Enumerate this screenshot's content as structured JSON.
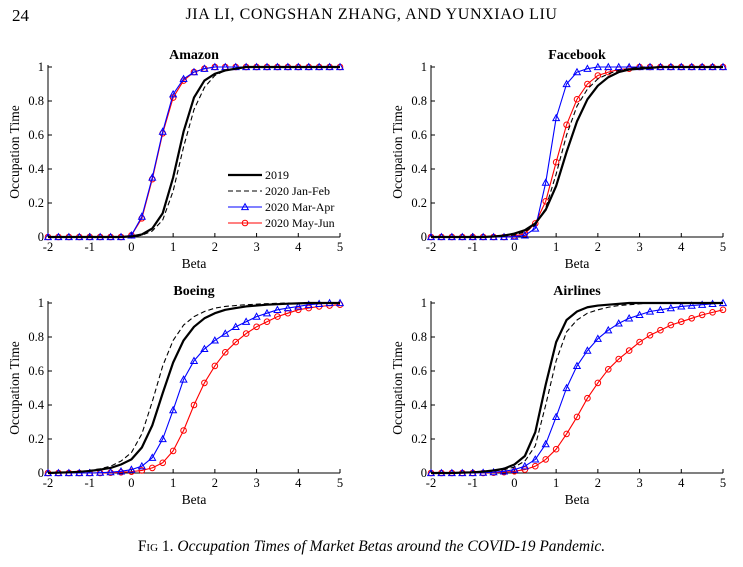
{
  "header": {
    "page_number": "24",
    "running_title": "JIA LI, CONGSHAN ZHANG, AND YUNXIAO LIU"
  },
  "caption": {
    "label": "Fig 1.",
    "text": "Occupation Times of Market Betas around the COVID-19 Pandemic."
  },
  "legend": {
    "entries": [
      {
        "name": "2019",
        "key": "y2019"
      },
      {
        "name": "2020 Jan-Feb",
        "key": "janfeb"
      },
      {
        "name": "2020 Mar-Apr",
        "key": "marapr"
      },
      {
        "name": "2020 May-Jun",
        "key": "mayjun"
      }
    ]
  },
  "styles": {
    "y2019": {
      "color": "#000000",
      "dash": "none",
      "width": 2.2,
      "marker": "none"
    },
    "janfeb": {
      "color": "#000000",
      "dash": "5,3",
      "width": 1.1,
      "marker": "none"
    },
    "marapr": {
      "color": "#0000ff",
      "dash": "none",
      "width": 1.1,
      "marker": "triangle"
    },
    "mayjun": {
      "color": "#ff0000",
      "dash": "none",
      "width": 1.1,
      "marker": "circle"
    }
  },
  "chart_data": [
    {
      "type": "line",
      "title": "Amazon",
      "xlabel": "Beta",
      "ylabel": "Occupation Time",
      "xlim": [
        -2,
        5
      ],
      "ylim": [
        0,
        1
      ],
      "xticks": [
        "-2",
        "-1",
        "0",
        "1",
        "2",
        "3",
        "4",
        "5"
      ],
      "yticks": [
        "0",
        "0.2",
        "0.4",
        "0.6",
        "0.8",
        "1"
      ],
      "x": [
        -2.0,
        -1.75,
        -1.5,
        -1.25,
        -1.0,
        -0.75,
        -0.5,
        -0.25,
        0.0,
        0.25,
        0.5,
        0.75,
        1.0,
        1.25,
        1.5,
        1.75,
        2.0,
        2.25,
        2.5,
        2.75,
        3.0,
        3.25,
        3.5,
        3.75,
        4.0,
        4.25,
        4.5,
        4.75,
        5.0
      ],
      "series": [
        {
          "name": "2019",
          "key": "y2019",
          "values": [
            0,
            0,
            0,
            0,
            0,
            0,
            0,
            0,
            0.003,
            0.015,
            0.05,
            0.14,
            0.35,
            0.62,
            0.82,
            0.92,
            0.96,
            0.98,
            0.99,
            1,
            1,
            1,
            1,
            1,
            1,
            1,
            1,
            1,
            1
          ]
        },
        {
          "name": "2020 Jan-Feb",
          "key": "janfeb",
          "values": [
            0,
            0,
            0,
            0,
            0,
            0,
            0,
            0,
            0.002,
            0.01,
            0.035,
            0.1,
            0.27,
            0.53,
            0.75,
            0.88,
            0.95,
            0.98,
            0.99,
            1,
            1,
            1,
            1,
            1,
            1,
            1,
            1,
            1,
            1
          ]
        },
        {
          "name": "2020 Mar-Apr",
          "key": "marapr",
          "values": [
            0,
            0,
            0,
            0,
            0,
            0,
            0,
            0,
            0.01,
            0.12,
            0.35,
            0.62,
            0.84,
            0.93,
            0.97,
            0.99,
            1,
            1,
            1,
            1,
            1,
            1,
            1,
            1,
            1,
            1,
            1,
            1,
            1
          ]
        },
        {
          "name": "2020 May-Jun",
          "key": "mayjun",
          "values": [
            0,
            0,
            0,
            0,
            0,
            0,
            0,
            0,
            0.01,
            0.11,
            0.34,
            0.61,
            0.82,
            0.92,
            0.97,
            0.99,
            1,
            1,
            1,
            1,
            1,
            1,
            1,
            1,
            1,
            1,
            1,
            1,
            1
          ]
        }
      ]
    },
    {
      "type": "line",
      "title": "Facebook",
      "xlabel": "Beta",
      "ylabel": "Occupation Time",
      "xlim": [
        -2,
        5
      ],
      "ylim": [
        0,
        1
      ],
      "xticks": [
        "-2",
        "-1",
        "0",
        "1",
        "2",
        "3",
        "4",
        "5"
      ],
      "yticks": [
        "0",
        "0.2",
        "0.4",
        "0.6",
        "0.8",
        "1"
      ],
      "x": [
        -2.0,
        -1.75,
        -1.5,
        -1.25,
        -1.0,
        -0.75,
        -0.5,
        -0.25,
        0.0,
        0.25,
        0.5,
        0.75,
        1.0,
        1.25,
        1.5,
        1.75,
        2.0,
        2.25,
        2.5,
        2.75,
        3.0,
        3.25,
        3.5,
        3.75,
        4.0,
        4.25,
        4.5,
        4.75,
        5.0
      ],
      "series": [
        {
          "name": "2019",
          "key": "y2019",
          "values": [
            0,
            0,
            0,
            0,
            0,
            0,
            0.003,
            0.008,
            0.02,
            0.04,
            0.08,
            0.16,
            0.3,
            0.5,
            0.68,
            0.81,
            0.89,
            0.94,
            0.97,
            0.985,
            0.99,
            0.995,
            1,
            1,
            1,
            1,
            1,
            1,
            1
          ]
        },
        {
          "name": "2020 Jan-Feb",
          "key": "janfeb",
          "values": [
            0,
            0,
            0,
            0,
            0,
            0,
            0.002,
            0.005,
            0.012,
            0.03,
            0.07,
            0.17,
            0.37,
            0.6,
            0.77,
            0.87,
            0.93,
            0.96,
            0.98,
            0.99,
            1,
            1,
            1,
            1,
            1,
            1,
            1,
            1,
            1
          ]
        },
        {
          "name": "2020 Mar-Apr",
          "key": "marapr",
          "values": [
            0,
            0,
            0,
            0,
            0,
            0,
            0,
            0,
            0.002,
            0.01,
            0.05,
            0.32,
            0.7,
            0.9,
            0.97,
            0.99,
            1,
            1,
            1,
            1,
            1,
            1,
            1,
            1,
            1,
            1,
            1,
            1,
            1
          ]
        },
        {
          "name": "2020 May-Jun",
          "key": "mayjun",
          "values": [
            0,
            0,
            0,
            0,
            0,
            0,
            0,
            0,
            0.005,
            0.02,
            0.08,
            0.21,
            0.44,
            0.66,
            0.81,
            0.9,
            0.95,
            0.97,
            0.985,
            0.99,
            1,
            1,
            1,
            1,
            1,
            1,
            1,
            1,
            1
          ]
        }
      ]
    },
    {
      "type": "line",
      "title": "Boeing",
      "xlabel": "Beta",
      "ylabel": "Occupation Time",
      "xlim": [
        -2,
        5
      ],
      "ylim": [
        0,
        1
      ],
      "xticks": [
        "-2",
        "-1",
        "0",
        "1",
        "2",
        "3",
        "4",
        "5"
      ],
      "yticks": [
        "0",
        "0.2",
        "0.4",
        "0.6",
        "0.8",
        "1"
      ],
      "x": [
        -2.0,
        -1.75,
        -1.5,
        -1.25,
        -1.0,
        -0.75,
        -0.5,
        -0.25,
        0.0,
        0.25,
        0.5,
        0.75,
        1.0,
        1.25,
        1.5,
        1.75,
        2.0,
        2.25,
        2.5,
        2.75,
        3.0,
        3.25,
        3.5,
        3.75,
        4.0,
        4.25,
        4.5,
        4.75,
        5.0
      ],
      "series": [
        {
          "name": "2019",
          "key": "y2019",
          "values": [
            0,
            0.002,
            0.004,
            0.007,
            0.012,
            0.02,
            0.03,
            0.05,
            0.08,
            0.15,
            0.28,
            0.47,
            0.65,
            0.78,
            0.86,
            0.91,
            0.94,
            0.96,
            0.97,
            0.98,
            0.985,
            0.99,
            0.993,
            0.996,
            0.998,
            1,
            1,
            1,
            1
          ]
        },
        {
          "name": "2020 Jan-Feb",
          "key": "janfeb",
          "values": [
            0,
            0.002,
            0.004,
            0.008,
            0.015,
            0.025,
            0.04,
            0.07,
            0.12,
            0.23,
            0.42,
            0.63,
            0.78,
            0.87,
            0.92,
            0.95,
            0.97,
            0.98,
            0.985,
            0.99,
            0.993,
            0.996,
            0.998,
            1,
            1,
            1,
            1,
            1,
            1
          ]
        },
        {
          "name": "2020 Mar-Apr",
          "key": "marapr",
          "values": [
            0,
            0,
            0,
            0,
            0,
            0.002,
            0.005,
            0.01,
            0.02,
            0.04,
            0.09,
            0.2,
            0.37,
            0.55,
            0.66,
            0.73,
            0.78,
            0.82,
            0.86,
            0.89,
            0.92,
            0.94,
            0.96,
            0.97,
            0.98,
            0.99,
            0.995,
            1,
            1
          ]
        },
        {
          "name": "2020 May-Jun",
          "key": "mayjun",
          "values": [
            0,
            0,
            0,
            0,
            0,
            0,
            0.002,
            0.004,
            0.008,
            0.015,
            0.03,
            0.06,
            0.13,
            0.25,
            0.4,
            0.53,
            0.63,
            0.71,
            0.77,
            0.82,
            0.86,
            0.89,
            0.92,
            0.94,
            0.96,
            0.97,
            0.98,
            0.985,
            0.99
          ]
        }
      ]
    },
    {
      "type": "line",
      "title": "Airlines",
      "xlabel": "Beta",
      "ylabel": "Occupation Time",
      "xlim": [
        -2,
        5
      ],
      "ylim": [
        0,
        1
      ],
      "xticks": [
        "-2",
        "-1",
        "0",
        "1",
        "2",
        "3",
        "4",
        "5"
      ],
      "yticks": [
        "0",
        "0.2",
        "0.4",
        "0.6",
        "0.8",
        "1"
      ],
      "x": [
        -2.0,
        -1.75,
        -1.5,
        -1.25,
        -1.0,
        -0.75,
        -0.5,
        -0.25,
        0.0,
        0.25,
        0.5,
        0.75,
        1.0,
        1.25,
        1.5,
        1.75,
        2.0,
        2.25,
        2.5,
        2.75,
        3.0,
        3.25,
        3.5,
        3.75,
        4.0,
        4.25,
        4.5,
        4.75,
        5.0
      ],
      "series": [
        {
          "name": "2019",
          "key": "y2019",
          "values": [
            0,
            0,
            0,
            0.002,
            0.004,
            0.008,
            0.015,
            0.025,
            0.05,
            0.1,
            0.24,
            0.52,
            0.77,
            0.9,
            0.95,
            0.975,
            0.985,
            0.99,
            0.995,
            1,
            1,
            1,
            1,
            1,
            1,
            1,
            1,
            1,
            1
          ]
        },
        {
          "name": "2020 Jan-Feb",
          "key": "janfeb",
          "values": [
            0,
            0,
            0,
            0.001,
            0.003,
            0.006,
            0.012,
            0.02,
            0.035,
            0.07,
            0.16,
            0.4,
            0.66,
            0.83,
            0.9,
            0.94,
            0.96,
            0.975,
            0.985,
            0.99,
            0.995,
            1,
            1,
            1,
            1,
            1,
            1,
            1,
            1
          ]
        },
        {
          "name": "2020 Mar-Apr",
          "key": "marapr",
          "values": [
            0,
            0,
            0,
            0,
            0,
            0.002,
            0.005,
            0.01,
            0.02,
            0.04,
            0.08,
            0.17,
            0.33,
            0.5,
            0.63,
            0.72,
            0.79,
            0.84,
            0.88,
            0.91,
            0.93,
            0.95,
            0.96,
            0.97,
            0.98,
            0.985,
            0.99,
            0.995,
            1
          ]
        },
        {
          "name": "2020 May-Jun",
          "key": "mayjun",
          "values": [
            0,
            0,
            0,
            0,
            0,
            0,
            0.002,
            0.005,
            0.01,
            0.02,
            0.04,
            0.08,
            0.14,
            0.23,
            0.33,
            0.44,
            0.53,
            0.61,
            0.67,
            0.72,
            0.77,
            0.81,
            0.84,
            0.87,
            0.89,
            0.91,
            0.93,
            0.945,
            0.96
          ]
        }
      ]
    }
  ]
}
